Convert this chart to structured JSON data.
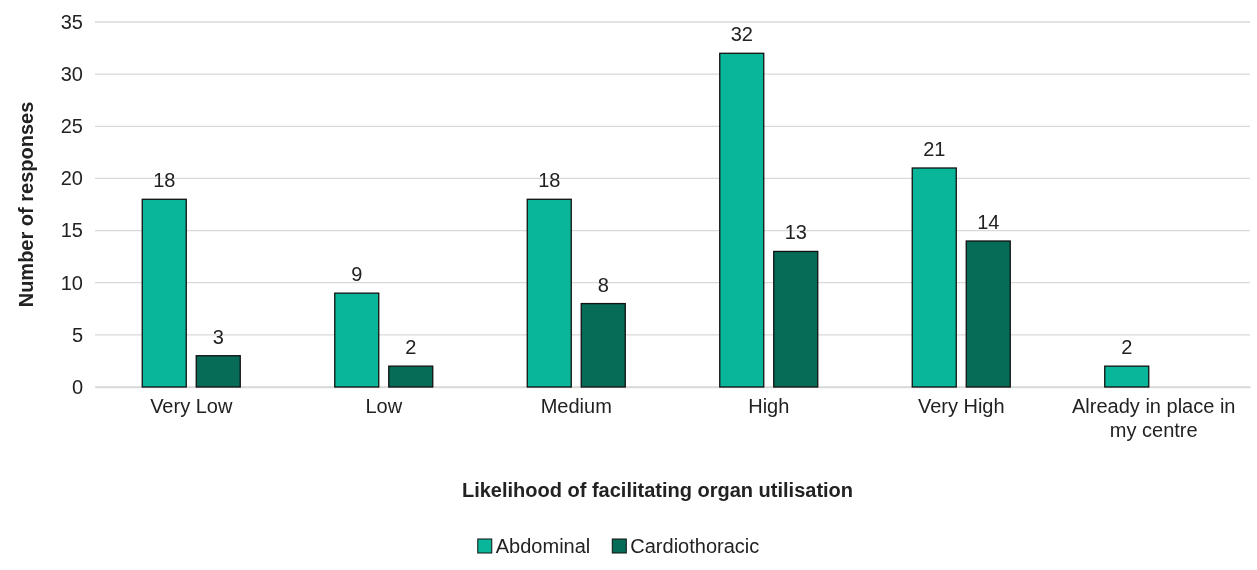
{
  "chart_data": {
    "type": "bar",
    "xlabel": "Likelihood of facilitating organ utilisation",
    "ylabel": "Number of responses",
    "categories": [
      "Very Low",
      "Low",
      "Medium",
      "High",
      "Very High",
      "Already in place in my centre"
    ],
    "series": [
      {
        "name": "Abdominal",
        "color": "#0ab69a",
        "values": [
          18,
          9,
          18,
          32,
          21,
          2
        ]
      },
      {
        "name": "Cardiothoracic",
        "color": "#066b57",
        "values": [
          3,
          2,
          8,
          13,
          14,
          null
        ]
      }
    ],
    "ylim": [
      0,
      35
    ],
    "yticks": [
      0,
      5,
      10,
      15,
      20,
      25,
      30,
      35
    ],
    "grid": "y",
    "legend": "bottom",
    "data_labels": true
  }
}
